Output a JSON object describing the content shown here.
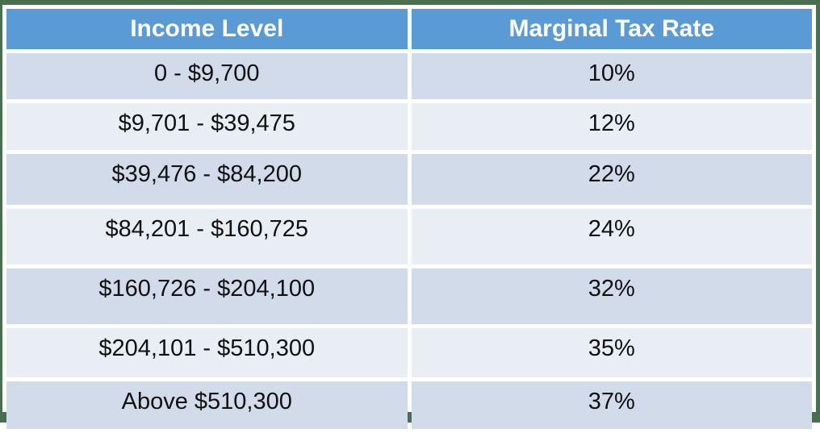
{
  "chart_data": {
    "type": "table",
    "columns": [
      "Income Level",
      "Marginal Tax Rate"
    ],
    "rows": [
      [
        "0 - $9,700",
        "10%"
      ],
      [
        "$9,701 - $39,475",
        "12%"
      ],
      [
        "$39,476 - $84,200",
        "22%"
      ],
      [
        "$84,201 - $160,725",
        "24%"
      ],
      [
        "$160,726 - $204,100",
        "32%"
      ],
      [
        "$204,101 - $510,300",
        "35%"
      ],
      [
        "Above $510,300",
        "37%"
      ]
    ],
    "layout": {
      "legend": "none",
      "grid": "off",
      "header_position": "top"
    },
    "colors": {
      "header_bg": "#5B9BD5",
      "header_text": "#FFFFFF",
      "row_odd_bg": "#D1DBEA",
      "row_even_bg": "#E9EDF4",
      "frame_border": "#48704E",
      "body_text": "#111111",
      "cell_gap": "#FFFFFF"
    }
  }
}
